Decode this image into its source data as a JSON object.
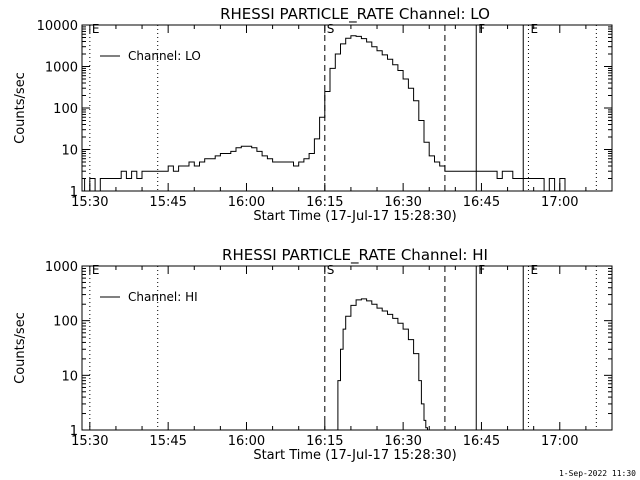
{
  "footer": {
    "timestamp": "1-Sep-2022 11:30"
  },
  "chart_data": [
    {
      "type": "line",
      "title": "RHESSI PARTICLE_RATE Channel: LO",
      "xlabel": "Start Time (17-Jul-17 15:28:30)",
      "ylabel": "Counts/sec",
      "y_scale": "log",
      "xlim": [
        "15:28:30",
        "17:10:00"
      ],
      "ylim": [
        1,
        10000
      ],
      "x_ticks": [
        "15:30",
        "15:45",
        "16:00",
        "16:15",
        "16:30",
        "16:45",
        "17:00"
      ],
      "y_ticks": [
        "1",
        "10",
        "100",
        "1000",
        "10000"
      ],
      "legend": {
        "position": "top-left",
        "entries": [
          "Channel: LO"
        ]
      },
      "grid": false,
      "markers": [
        {
          "label": "E",
          "time": "15:30",
          "style": "dotted"
        },
        {
          "label": "",
          "time": "15:43",
          "style": "dotted"
        },
        {
          "label": "S",
          "time": "16:15",
          "style": "dashed"
        },
        {
          "label": "",
          "time": "16:38",
          "style": "dashed"
        },
        {
          "label": "F",
          "time": "16:44",
          "style": "solid"
        },
        {
          "label": "",
          "time": "16:53",
          "style": "solid"
        },
        {
          "label": "E",
          "time": "16:54",
          "style": "dotted"
        },
        {
          "label": "",
          "time": "17:07",
          "style": "dotted"
        }
      ],
      "series": [
        {
          "name": "Channel: LO",
          "x": [
            "15:28:30",
            "15:29",
            "15:30",
            "15:31",
            "15:32",
            "15:33",
            "15:34",
            "15:35",
            "15:36",
            "15:37",
            "15:38",
            "15:39",
            "15:40",
            "15:41",
            "15:42",
            "15:43",
            "15:44",
            "15:45",
            "15:46",
            "15:47",
            "15:48",
            "15:49",
            "15:50",
            "15:51",
            "15:52",
            "15:53",
            "15:54",
            "15:55",
            "15:56",
            "15:57",
            "15:58",
            "15:59",
            "16:00",
            "16:01",
            "16:02",
            "16:03",
            "16:04",
            "16:05",
            "16:06",
            "16:07",
            "16:08",
            "16:09",
            "16:10",
            "16:11",
            "16:12",
            "16:13",
            "16:14",
            "16:15",
            "16:16",
            "16:17",
            "16:18",
            "16:19",
            "16:20",
            "16:21",
            "16:22",
            "16:23",
            "16:24",
            "16:25",
            "16:26",
            "16:27",
            "16:28",
            "16:29",
            "16:30",
            "16:31",
            "16:32",
            "16:33",
            "16:34",
            "16:35",
            "16:36",
            "16:37",
            "16:38",
            "16:39",
            "16:40",
            "16:41",
            "16:42",
            "16:43",
            "16:44",
            "16:45",
            "16:46",
            "16:47",
            "16:48",
            "16:49",
            "16:50",
            "16:51",
            "16:52",
            "16:53",
            "16:54",
            "16:55",
            "16:56",
            "16:57",
            "16:58",
            "16:59",
            "17:00",
            "17:01"
          ],
          "y": [
            2,
            1,
            2,
            1,
            2,
            2,
            2,
            2,
            3,
            2,
            3,
            2,
            3,
            3,
            3,
            3,
            3,
            4,
            3,
            4,
            4,
            5,
            4,
            5,
            6,
            6,
            7,
            8,
            8,
            9,
            11,
            12,
            12,
            11,
            9,
            7,
            6,
            5,
            5,
            5,
            5,
            4,
            5,
            6,
            8,
            18,
            60,
            250,
            900,
            2000,
            3500,
            4800,
            5500,
            5300,
            4700,
            3900,
            3000,
            2400,
            1900,
            1500,
            1100,
            800,
            500,
            300,
            150,
            50,
            15,
            7,
            5,
            4,
            3,
            3,
            3,
            3,
            3,
            3,
            3,
            3,
            3,
            3,
            2,
            3,
            3,
            2,
            2,
            2,
            2,
            2,
            2,
            1,
            2,
            1,
            2,
            1
          ]
        }
      ]
    },
    {
      "type": "line",
      "title": "RHESSI PARTICLE_RATE Channel: HI",
      "xlabel": "Start Time (17-Jul-17 15:28:30)",
      "ylabel": "Counts/sec",
      "y_scale": "log",
      "xlim": [
        "15:28:30",
        "17:10:00"
      ],
      "ylim": [
        1,
        1000
      ],
      "x_ticks": [
        "15:30",
        "15:45",
        "16:00",
        "16:15",
        "16:30",
        "16:45",
        "17:00"
      ],
      "y_ticks": [
        "1",
        "10",
        "100",
        "1000"
      ],
      "legend": {
        "position": "top-left",
        "entries": [
          "Channel: HI"
        ]
      },
      "grid": false,
      "markers": [
        {
          "label": "E",
          "time": "15:30",
          "style": "dotted"
        },
        {
          "label": "",
          "time": "15:43",
          "style": "dotted"
        },
        {
          "label": "S",
          "time": "16:15",
          "style": "dashed"
        },
        {
          "label": "",
          "time": "16:38",
          "style": "dashed"
        },
        {
          "label": "F",
          "time": "16:44",
          "style": "solid"
        },
        {
          "label": "",
          "time": "16:53",
          "style": "solid"
        },
        {
          "label": "E",
          "time": "16:54",
          "style": "dotted"
        },
        {
          "label": "",
          "time": "17:07",
          "style": "dotted"
        }
      ],
      "series": [
        {
          "name": "Channel: HI",
          "x": [
            "16:17:00",
            "16:17:30",
            "16:18:00",
            "16:18:30",
            "16:19:00",
            "16:20:00",
            "16:21:00",
            "16:22:00",
            "16:23:00",
            "16:24:00",
            "16:25:00",
            "16:26:00",
            "16:27:00",
            "16:28:00",
            "16:29:00",
            "16:30:00",
            "16:31:00",
            "16:32:00",
            "16:33:00",
            "16:33:30",
            "16:34:00",
            "16:34:20",
            "16:34:40"
          ],
          "y": [
            1,
            8,
            30,
            70,
            120,
            190,
            240,
            250,
            230,
            200,
            170,
            150,
            130,
            110,
            90,
            70,
            45,
            25,
            8,
            3,
            1.5,
            1.1,
            1
          ]
        }
      ]
    }
  ]
}
